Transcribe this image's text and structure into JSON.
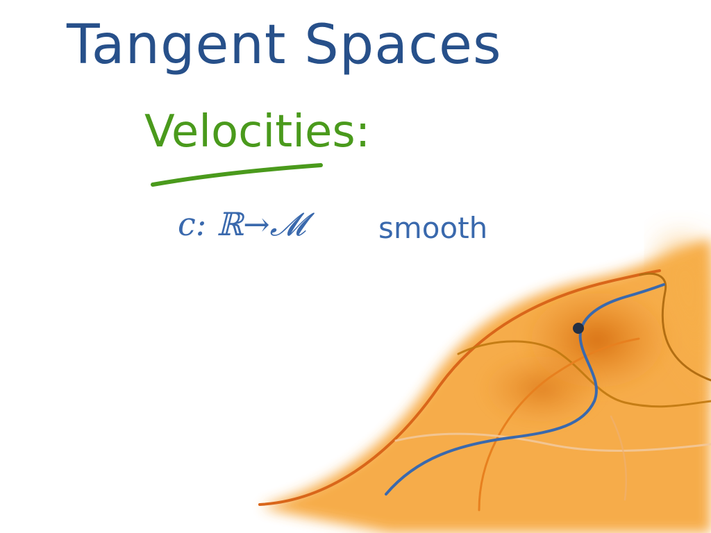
{
  "slide": {
    "title": "Tangent Spaces",
    "subtitle": "Velocities:",
    "formula": "c: ℝ→𝓜",
    "qualifier": "smooth"
  },
  "colors": {
    "title": "#27508a",
    "subtitle": "#4a9a1c",
    "text": "#3a69ad",
    "manifold_fill": "#f6a63a",
    "manifold_outline": "#d9661a",
    "curve_blue": "#3a69ad",
    "curve_brown": "#b36e12",
    "point": "#243044"
  }
}
